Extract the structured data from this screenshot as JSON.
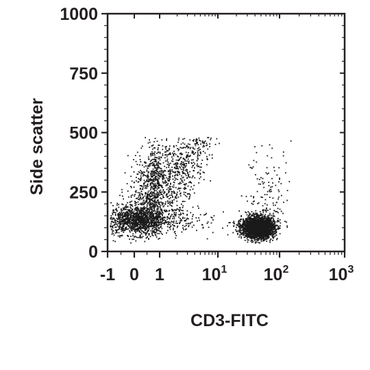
{
  "chart_data": {
    "type": "scatter",
    "title": "",
    "xlabel": "CD3-FITC",
    "ylabel": "Side scatter",
    "x_scale": "biexponential",
    "xlim": [
      -1,
      1000
    ],
    "ylim": [
      0,
      1000
    ],
    "grid": false,
    "legend": "none",
    "point_color": "#1a1a1a",
    "x_ticks": [
      {
        "value": -1,
        "label": "-1",
        "sup": ""
      },
      {
        "value": 0,
        "label": "0",
        "sup": ""
      },
      {
        "value": 1,
        "label": "1",
        "sup": ""
      },
      {
        "value": 10,
        "label": "10",
        "sup": "1"
      },
      {
        "value": 100,
        "label": "10",
        "sup": "2"
      },
      {
        "value": 1000,
        "label": "10",
        "sup": "3"
      }
    ],
    "y_ticks": [
      {
        "value": 0,
        "label": "0"
      },
      {
        "value": 250,
        "label": "250"
      },
      {
        "value": 500,
        "label": "500"
      },
      {
        "value": 750,
        "label": "750"
      },
      {
        "value": 1000,
        "label": "1000"
      }
    ],
    "populations": [
      {
        "id": "cd3-negative",
        "x_center": 0.2,
        "y_center": 130,
        "count": 1400,
        "x_spread": 0.45,
        "y_spread": 30
      },
      {
        "id": "cd3-negative-granular",
        "x_center": 1.2,
        "y_center": 290,
        "count": 1500,
        "x_spread": 0.55,
        "y_spread": 85
      },
      {
        "id": "cd3-positive",
        "x_center": 45,
        "y_center": 100,
        "count": 2800,
        "x_spread": 0.13,
        "y_spread": 22
      },
      {
        "id": "cd3-positive-high-ssc",
        "x_center": 60,
        "y_center": 320,
        "count": 140,
        "x_spread": 0.18,
        "y_spread": 110
      }
    ]
  }
}
